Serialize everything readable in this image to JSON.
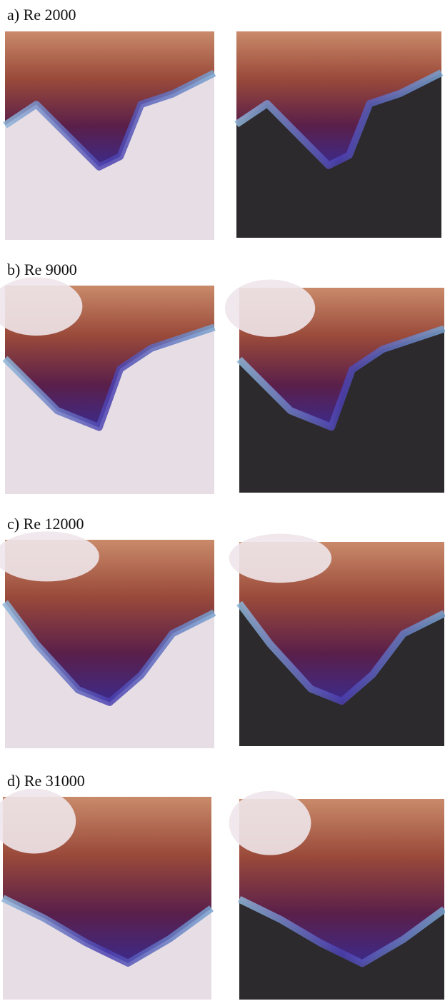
{
  "panels": [
    {
      "label": "a) Re 2000"
    },
    {
      "label": "b) Re 9000"
    },
    {
      "label": "c) Re 12000"
    },
    {
      "label": "d) Re 31000"
    }
  ]
}
